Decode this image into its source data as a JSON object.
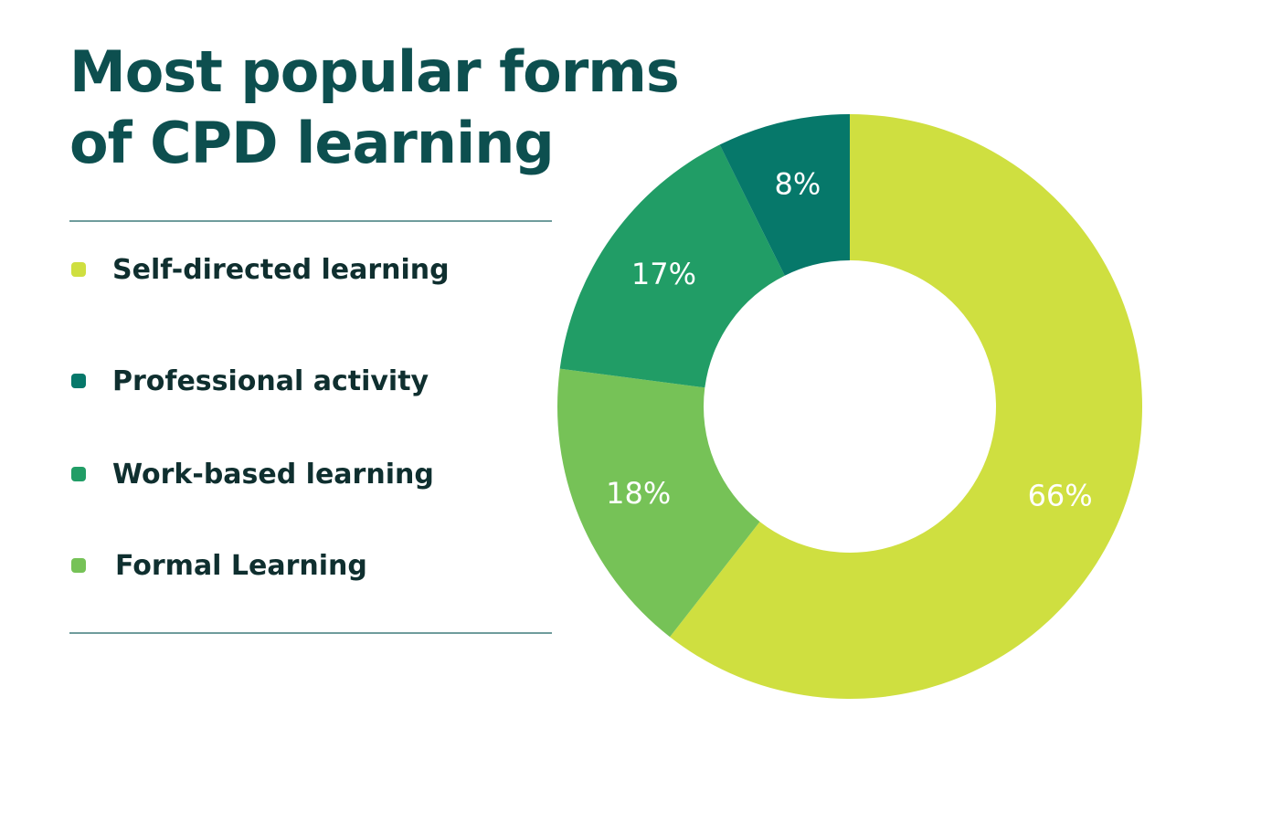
{
  "title": "Most popular forms of CPD learning",
  "chart_data": {
    "type": "pie",
    "title": "Most popular forms of CPD learning",
    "donut": true,
    "legend": "left",
    "categories": [
      "Self-directed learning",
      "Professional activity",
      "Work-based learning",
      "Formal Learning"
    ],
    "values": [
      66,
      8,
      17,
      18
    ],
    "value_labels": [
      "66%",
      "8%",
      "17%",
      "18%"
    ],
    "colors": [
      "#cfdf40",
      "#06786a",
      "#219d66",
      "#76c257"
    ],
    "slice_order_clockwise_from_top": [
      "Self-directed learning",
      "Formal Learning",
      "Work-based learning",
      "Professional activity"
    ]
  }
}
